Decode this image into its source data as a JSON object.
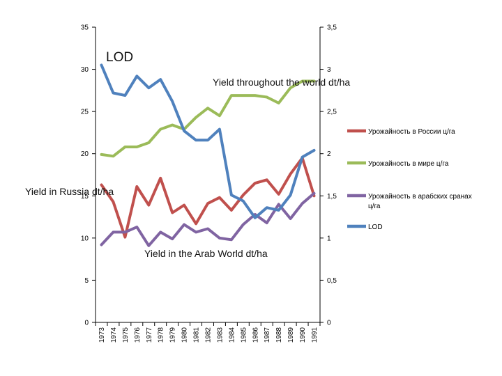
{
  "chart_data": {
    "type": "line",
    "x": [
      "1973",
      "1974",
      "1975",
      "1976",
      "1977",
      "1978",
      "1979",
      "1980",
      "1981",
      "1982",
      "1983",
      "1984",
      "1985",
      "1986",
      "1987",
      "1988",
      "1989",
      "1990",
      "1991"
    ],
    "left_axis": {
      "min": 0,
      "max": 35,
      "step": 5,
      "tick_labels": [
        "0",
        "5",
        "10",
        "15",
        "20",
        "25",
        "30",
        "35"
      ]
    },
    "right_axis": {
      "min": 0,
      "max": 3.5,
      "step": 0.5,
      "tick_labels": [
        "0",
        "0,5",
        "1",
        "1,5",
        "2",
        "2,5",
        "3",
        "3,5"
      ]
    },
    "series": [
      {
        "name": "Урожайность в России ц/га",
        "color": "#c0504d",
        "axis": "left",
        "values": [
          16.3,
          14.3,
          10.1,
          16.1,
          13.9,
          17.1,
          13.0,
          13.9,
          11.7,
          14.1,
          14.8,
          13.3,
          15.1,
          16.5,
          16.9,
          15.2,
          17.6,
          19.5,
          15.0
        ]
      },
      {
        "name": "Урожайность в мире ц/га",
        "color": "#9bbb59",
        "axis": "left",
        "values": [
          19.9,
          19.7,
          20.8,
          20.8,
          21.3,
          22.9,
          23.4,
          22.9,
          24.3,
          25.4,
          24.5,
          26.9,
          26.9,
          26.9,
          26.7,
          26.0,
          27.8,
          28.6,
          28.6
        ]
      },
      {
        "name": "Урожайность в арабских сранах ц/га",
        "color": "#8064a2",
        "axis": "left",
        "values": [
          9.2,
          10.7,
          10.7,
          11.3,
          9.1,
          10.7,
          9.9,
          11.6,
          10.7,
          11.1,
          10.0,
          9.8,
          11.6,
          12.8,
          11.8,
          14.0,
          12.3,
          14.1,
          15.3
        ]
      },
      {
        "name": "LOD",
        "color": "#4f81bd",
        "axis": "right",
        "values": [
          3.05,
          2.72,
          2.69,
          2.92,
          2.78,
          2.88,
          2.62,
          2.27,
          2.16,
          2.16,
          2.29,
          1.51,
          1.44,
          1.24,
          1.36,
          1.33,
          1.51,
          1.96,
          2.04
        ]
      }
    ],
    "annotations": [
      {
        "id": "lod",
        "text": "LOD"
      },
      {
        "id": "world",
        "text": "Yield throughout the world dt/ha"
      },
      {
        "id": "russia",
        "text": "Yield in Russia dt/ha"
      },
      {
        "id": "arab",
        "text": "Yield in the Arab World dt/ha"
      }
    ],
    "legend": {
      "position": "right",
      "entries": [
        "Урожайность в России ц/га",
        "Урожайность в мире ц/га",
        "Урожайность в арабских сранах ц/га",
        "LOD"
      ]
    },
    "grid": false
  }
}
